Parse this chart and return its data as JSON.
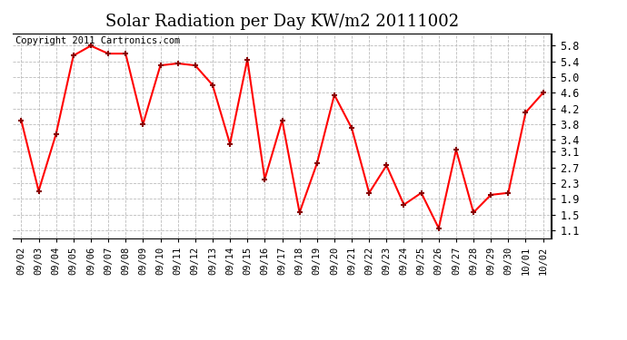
{
  "title": "Solar Radiation per Day KW/m2 20111002",
  "copyright_text": "Copyright 2011 Cartronics.com",
  "labels": [
    "09/02",
    "09/03",
    "09/04",
    "09/05",
    "09/06",
    "09/07",
    "09/08",
    "09/09",
    "09/10",
    "09/11",
    "09/12",
    "09/13",
    "09/14",
    "09/15",
    "09/16",
    "09/17",
    "09/18",
    "09/19",
    "09/20",
    "09/21",
    "09/22",
    "09/23",
    "09/24",
    "09/25",
    "09/26",
    "09/27",
    "09/28",
    "09/29",
    "09/30",
    "10/01",
    "10/02"
  ],
  "values": [
    3.9,
    2.1,
    3.55,
    5.55,
    5.8,
    5.6,
    5.6,
    3.8,
    5.3,
    5.35,
    5.3,
    4.8,
    3.3,
    5.45,
    2.4,
    3.9,
    1.55,
    2.8,
    4.55,
    3.7,
    2.05,
    2.75,
    1.75,
    2.05,
    1.15,
    3.15,
    1.55,
    2.0,
    2.05,
    4.1,
    4.6
  ],
  "ylim": [
    0.9,
    6.1
  ],
  "yticks": [
    1.1,
    1.5,
    1.9,
    2.3,
    2.7,
    3.1,
    3.4,
    3.8,
    4.2,
    4.6,
    5.0,
    5.4,
    5.8
  ],
  "line_color": "#ff0000",
  "marker_color": "#880000",
  "bg_color": "#ffffff",
  "grid_color": "#bbbbbb",
  "title_fontsize": 13,
  "copyright_fontsize": 7.5,
  "tick_fontsize": 7.5,
  "ytick_fontsize": 8.5
}
